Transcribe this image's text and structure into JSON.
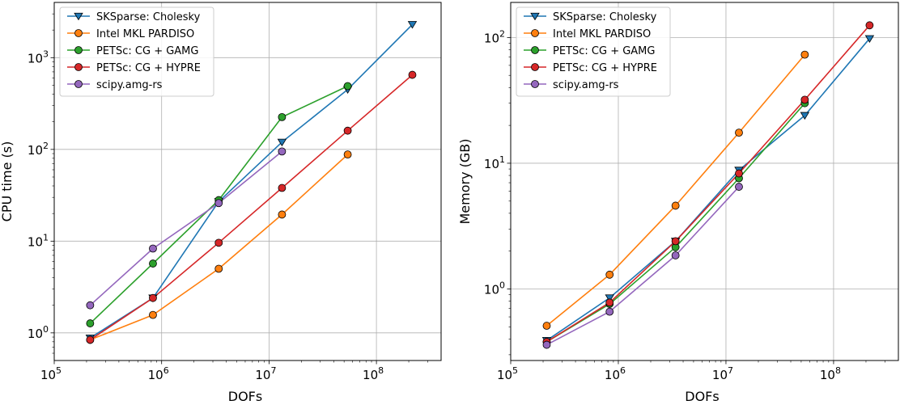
{
  "chart_data": [
    {
      "type": "line",
      "xscale": "log",
      "yscale": "log",
      "xlabel": "DOFs",
      "ylabel": "CPU time (s)",
      "xlim": [
        100000,
        400000000
      ],
      "ylim": [
        0.5,
        4000
      ],
      "xticks": [
        {
          "base": "10",
          "exp": "5"
        },
        {
          "base": "10",
          "exp": "6"
        },
        {
          "base": "10",
          "exp": "7"
        },
        {
          "base": "10",
          "exp": "8"
        }
      ],
      "yticks": [
        {
          "base": "10",
          "exp": "0"
        },
        {
          "base": "10",
          "exp": "1"
        },
        {
          "base": "10",
          "exp": "2"
        },
        {
          "base": "10",
          "exp": "3"
        }
      ],
      "grid": true,
      "legend_position": "upper-left",
      "series": [
        {
          "name": "SKSparse: Cholesky",
          "color": "#1f77b4",
          "marker": "triangle-down",
          "x": [
            216000,
            830000,
            3400000,
            13200000,
            54000000,
            216000000
          ],
          "y": [
            0.88,
            2.4,
            27,
            120,
            450,
            2300
          ]
        },
        {
          "name": "Intel MKL PARDISO",
          "color": "#ff7f0e",
          "marker": "circle",
          "x": [
            216000,
            830000,
            3400000,
            13200000,
            54000000
          ],
          "y": [
            0.84,
            1.57,
            5.0,
            19.5,
            88
          ]
        },
        {
          "name": "PETSc: CG + GAMG",
          "color": "#2ca02c",
          "marker": "circle",
          "x": [
            216000,
            830000,
            3400000,
            13200000,
            54000000
          ],
          "y": [
            1.27,
            5.7,
            28,
            225,
            490
          ]
        },
        {
          "name": "PETSc: CG + HYPRE",
          "color": "#d62728",
          "marker": "circle",
          "x": [
            216000,
            830000,
            3400000,
            13200000,
            54000000,
            216000000
          ],
          "y": [
            0.84,
            2.4,
            9.6,
            38,
            160,
            650
          ]
        },
        {
          "name": "scipy.amg-rs",
          "color": "#9467bd",
          "marker": "circle",
          "x": [
            216000,
            830000,
            3400000,
            13200000
          ],
          "y": [
            2.0,
            8.3,
            26,
            95
          ]
        }
      ]
    },
    {
      "type": "line",
      "xscale": "log",
      "yscale": "log",
      "xlabel": "DOFs",
      "ylabel": "Memory (GB)",
      "xlim": [
        100000,
        400000000
      ],
      "ylim": [
        0.27,
        190
      ],
      "xticks": [
        {
          "base": "10",
          "exp": "5"
        },
        {
          "base": "10",
          "exp": "6"
        },
        {
          "base": "10",
          "exp": "7"
        },
        {
          "base": "10",
          "exp": "8"
        }
      ],
      "yticks": [
        {
          "base": "10",
          "exp": "0"
        },
        {
          "base": "10",
          "exp": "1"
        },
        {
          "base": "10",
          "exp": "2"
        }
      ],
      "grid": true,
      "legend_position": "upper-left",
      "series": [
        {
          "name": "SKSparse: Cholesky",
          "color": "#1f77b4",
          "marker": "triangle-down",
          "x": [
            216000,
            830000,
            3400000,
            13200000,
            54000000,
            216000000
          ],
          "y": [
            0.39,
            0.85,
            2.4,
            8.8,
            24,
            98
          ]
        },
        {
          "name": "Intel MKL PARDISO",
          "color": "#ff7f0e",
          "marker": "circle",
          "x": [
            216000,
            830000,
            3400000,
            13200000,
            54000000
          ],
          "y": [
            0.51,
            1.3,
            4.6,
            17.5,
            73
          ]
        },
        {
          "name": "PETSc: CG + GAMG",
          "color": "#2ca02c",
          "marker": "circle",
          "x": [
            216000,
            830000,
            3400000,
            13200000,
            54000000
          ],
          "y": [
            0.38,
            0.76,
            2.15,
            7.6,
            30
          ]
        },
        {
          "name": "PETSc: CG + HYPRE",
          "color": "#d62728",
          "marker": "circle",
          "x": [
            216000,
            830000,
            3400000,
            13200000,
            54000000,
            216000000
          ],
          "y": [
            0.38,
            0.78,
            2.4,
            8.3,
            32,
            125
          ]
        },
        {
          "name": "scipy.amg-rs",
          "color": "#9467bd",
          "marker": "circle",
          "x": [
            216000,
            830000,
            3400000,
            13200000
          ],
          "y": [
            0.36,
            0.66,
            1.85,
            6.5
          ]
        }
      ]
    }
  ]
}
